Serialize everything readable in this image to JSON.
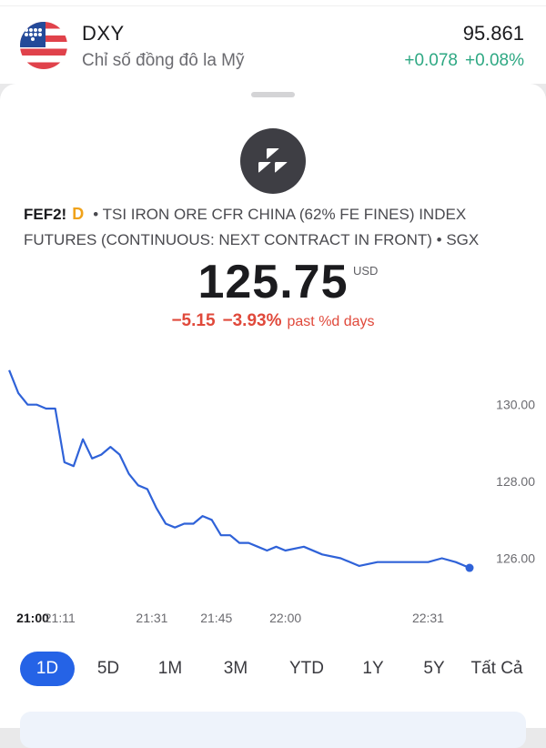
{
  "top_quote": {
    "symbol": "DXY",
    "name": "Chỉ số đồng đô la Mỹ",
    "last": "95.861",
    "change": "+0.078",
    "change_pct": "+0.08%",
    "flag_icon": "us-flag-icon"
  },
  "instrument": {
    "logo_icon": "futures-blocks-icon",
    "ticker": "FEF2!",
    "badge": "D",
    "description_line1": "• TSI IRON ORE CFR CHINA (62% FE FINES) INDEX",
    "description_line2": "FUTURES (CONTINUOUS: NEXT CONTRACT IN FRONT) • SGX",
    "price": "125.75",
    "currency": "USD",
    "change_abs": "−5.15",
    "change_pct": "−3.93%",
    "change_period": "past %d days"
  },
  "colors": {
    "line": "#2f62d8",
    "positive": "#2ea883",
    "negative": "#e0493b",
    "accent": "#2563e6"
  },
  "chart_data": {
    "type": "line",
    "x": [
      "21:00",
      "21:02",
      "21:04",
      "21:06",
      "21:08",
      "21:10",
      "21:12",
      "21:14",
      "21:16",
      "21:18",
      "21:20",
      "21:22",
      "21:24",
      "21:26",
      "21:28",
      "21:30",
      "21:32",
      "21:34",
      "21:36",
      "21:38",
      "21:40",
      "21:42",
      "21:44",
      "21:46",
      "21:48",
      "21:50",
      "21:52",
      "21:54",
      "21:56",
      "21:58",
      "22:00",
      "22:04",
      "22:08",
      "22:12",
      "22:16",
      "22:20",
      "22:24",
      "22:28",
      "22:31",
      "22:34",
      "22:37",
      "22:40"
    ],
    "values": [
      130.9,
      130.3,
      130.0,
      130.0,
      129.9,
      129.9,
      128.5,
      128.4,
      129.1,
      128.6,
      128.7,
      128.9,
      128.7,
      128.2,
      127.9,
      127.8,
      127.3,
      126.9,
      126.8,
      126.9,
      126.9,
      127.1,
      127.0,
      126.6,
      126.6,
      126.4,
      126.4,
      126.3,
      126.2,
      126.3,
      126.2,
      126.3,
      126.1,
      126.0,
      125.8,
      125.9,
      125.9,
      125.9,
      125.9,
      126.0,
      125.9,
      125.75
    ],
    "y_ticks": [
      "130.00",
      "128.00",
      "126.00"
    ],
    "x_ticks": [
      "21:00",
      "21:11",
      "21:31",
      "21:45",
      "22:00",
      "22:31"
    ],
    "ylim": [
      124.85,
      131.25
    ],
    "grid": false
  },
  "ranges": [
    "1D",
    "5D",
    "1M",
    "3M",
    "YTD",
    "1Y",
    "5Y",
    "Tất Cả"
  ],
  "active_range": "1D"
}
